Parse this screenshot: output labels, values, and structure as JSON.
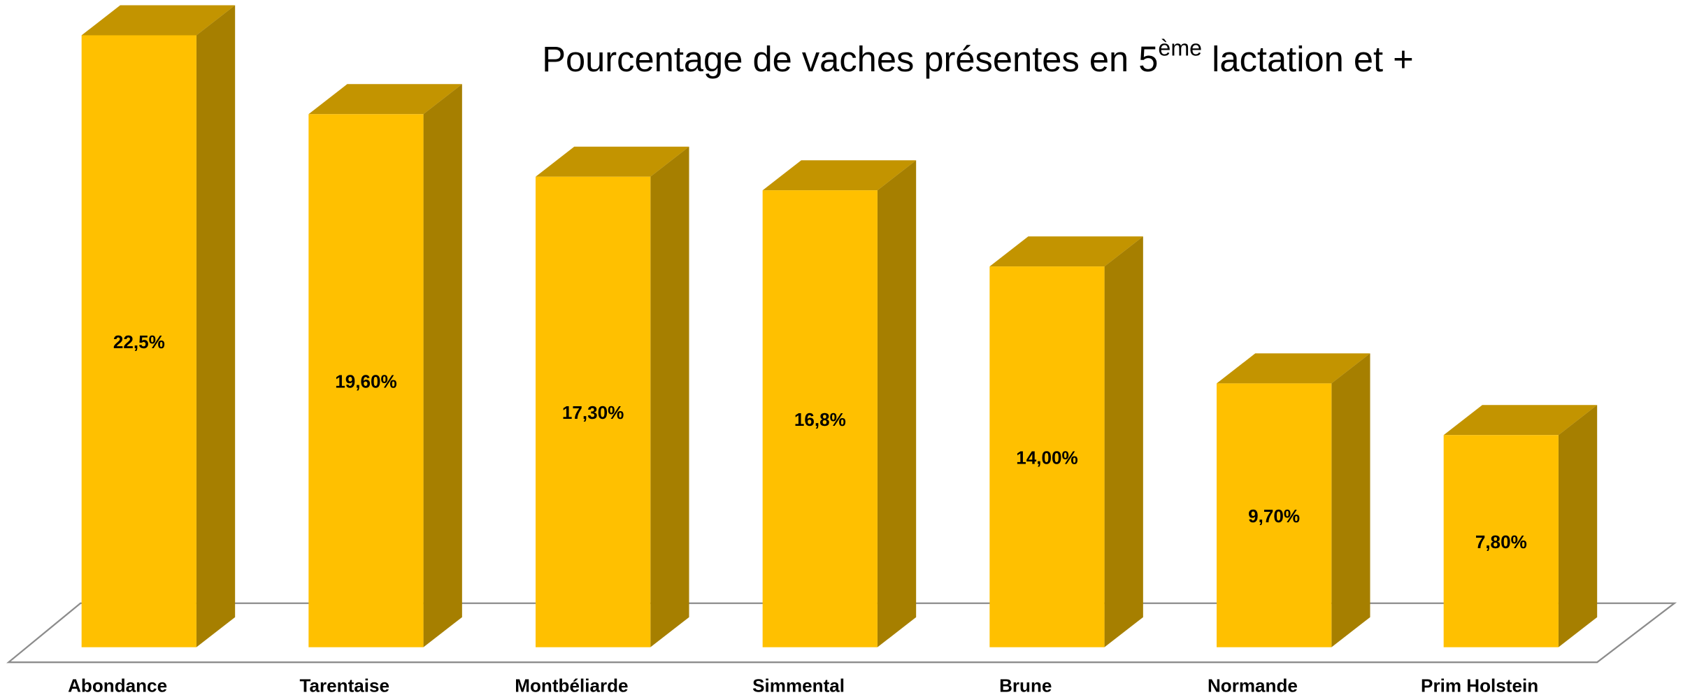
{
  "chart_data": {
    "type": "bar3d",
    "title": "Pourcentage de vaches présentes en 5",
    "title_superscript": "ème",
    "title_end": " lactation et +",
    "categories": [
      "Abondance",
      "Tarentaise",
      "Montbéliarde",
      "Simmental",
      "Brune",
      "Normande",
      "Prim Holstein"
    ],
    "values": [
      22.5,
      19.6,
      17.3,
      16.8,
      14.0,
      9.7,
      7.8
    ],
    "value_labels": [
      "22,5%",
      "19,60%",
      "17,30%",
      "16,8%",
      "14,00%",
      "9,70%",
      "7,80%"
    ],
    "color": "#ffc000",
    "ylim": [
      0,
      23.6
    ]
  }
}
